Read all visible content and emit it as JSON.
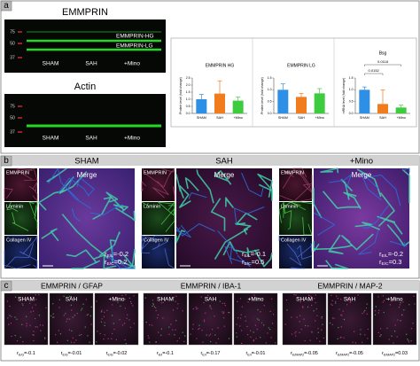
{
  "panel_a": {
    "label": "a",
    "blots": [
      {
        "title": "EMMPRIN",
        "markers": [
          75,
          50,
          37
        ],
        "bands": [
          "EMMPRIN-HG",
          "EMMPRIN-LG"
        ],
        "lanes": [
          "SHAM",
          "SAH",
          "+Mino"
        ]
      },
      {
        "title": "Actin",
        "markers": [
          75,
          50,
          37
        ],
        "lanes": [
          "SHAM",
          "SAH",
          "+Mino"
        ]
      }
    ]
  },
  "chart_data": [
    {
      "type": "bar",
      "title": "EMMPRIN HG",
      "ylabel": "Protein level (fold change)",
      "categories": [
        "SHAM",
        "SAH",
        "+Mino"
      ],
      "values": [
        1.0,
        1.4,
        0.9
      ],
      "errors": [
        0.35,
        0.9,
        0.25
      ],
      "colors": [
        "#2e8fe6",
        "#f07c1e",
        "#3dcc3d"
      ],
      "ylim": [
        0,
        2.5
      ],
      "yticks": [
        {
          "value": 0,
          "label": "0.0"
        },
        0.5,
        {
          "value": 1,
          "label": "1.0"
        },
        1.5,
        {
          "value": 2,
          "label": "2.0"
        },
        2.5
      ]
    },
    {
      "type": "bar",
      "title": "EMMPRIN LG",
      "ylabel": "Protein level (fold change)",
      "categories": [
        "SHAM",
        "SAH",
        "+Mino"
      ],
      "values": [
        1.0,
        0.7,
        0.85
      ],
      "errors": [
        0.25,
        0.15,
        0.2
      ],
      "colors": [
        "#2e8fe6",
        "#f07c1e",
        "#3dcc3d"
      ],
      "ylim": [
        0,
        1.5
      ],
      "yticks": [
        {
          "value": 0,
          "label": "0.0"
        },
        0.5,
        {
          "value": 1,
          "label": "1.0"
        },
        1.5
      ]
    },
    {
      "type": "bar",
      "title": "Bsg",
      "ylabel": "mRNA level (fold change)",
      "categories": [
        "SHAM",
        "SAH",
        "+Mino"
      ],
      "values": [
        1.0,
        0.4,
        0.25
      ],
      "errors": [
        0.12,
        0.6,
        0.1
      ],
      "colors": [
        "#2e8fe6",
        "#f07c1e",
        "#3dcc3d"
      ],
      "ylim": [
        0,
        1.5
      ],
      "yticks": [
        {
          "value": 0,
          "label": "0.0"
        },
        0.5,
        {
          "value": 1,
          "label": "1.0"
        },
        1.5
      ],
      "annotations": [
        "0.0118",
        "0.0152"
      ]
    }
  ],
  "panel_b": {
    "label": "b",
    "channels": [
      "EMMPRIN",
      "Laminin",
      "Collagen IV"
    ],
    "groups": [
      {
        "title": "SHAM",
        "merge": "Merge",
        "r": [
          {
            "symbol": "r",
            "sub": "E/L",
            "text": "=-0.2"
          },
          {
            "symbol": "r",
            "sub": "E/C",
            "text": "=0.2"
          }
        ]
      },
      {
        "title": "SAH",
        "merge": "Merge",
        "r": [
          {
            "symbol": "r",
            "sub": "E/L",
            "text": "=-0.1"
          },
          {
            "symbol": "r",
            "sub": "E/C",
            "text": "=0.5"
          }
        ]
      },
      {
        "title": "+Mino",
        "merge": "Merge",
        "r": [
          {
            "symbol": "r",
            "sub": "E/L",
            "text": "=-0.2"
          },
          {
            "symbol": "r",
            "sub": "E/C",
            "text": "=0.3"
          }
        ]
      }
    ]
  },
  "panel_c": {
    "label": "c",
    "groups": [
      {
        "title": "EMMPRIN / GFAP",
        "conditions": [
          "SHAM",
          "SAH",
          "+Mino"
        ],
        "r": [
          {
            "symbol": "r",
            "sub": "E/G",
            "text": "=-0.1"
          },
          {
            "symbol": "r",
            "sub": "E/G",
            "text": "=-0.01"
          },
          {
            "symbol": "r",
            "sub": "E/G",
            "text": "=-0.02"
          }
        ]
      },
      {
        "title": "EMMPRIN / IBA-1",
        "conditions": [
          "SHAM",
          "SAH",
          "+Mino"
        ],
        "r": [
          {
            "symbol": "r",
            "sub": "E/I",
            "text": "=-0.1"
          },
          {
            "symbol": "r",
            "sub": "E/I",
            "text": "=-0.17"
          },
          {
            "symbol": "r",
            "sub": "E/I",
            "text": "=-0.01"
          }
        ]
      },
      {
        "title": "EMMPRIN / MAP-2",
        "conditions": [
          "SHAM",
          "SAH",
          "+Mino"
        ],
        "r": [
          {
            "symbol": "r",
            "sub": "E/MAP2",
            "text": "=-0.05"
          },
          {
            "symbol": "r",
            "sub": "E/MAP2",
            "text": "=-0.05"
          },
          {
            "symbol": "r",
            "sub": "E/MAP2",
            "text": "=0.03"
          }
        ]
      }
    ]
  }
}
